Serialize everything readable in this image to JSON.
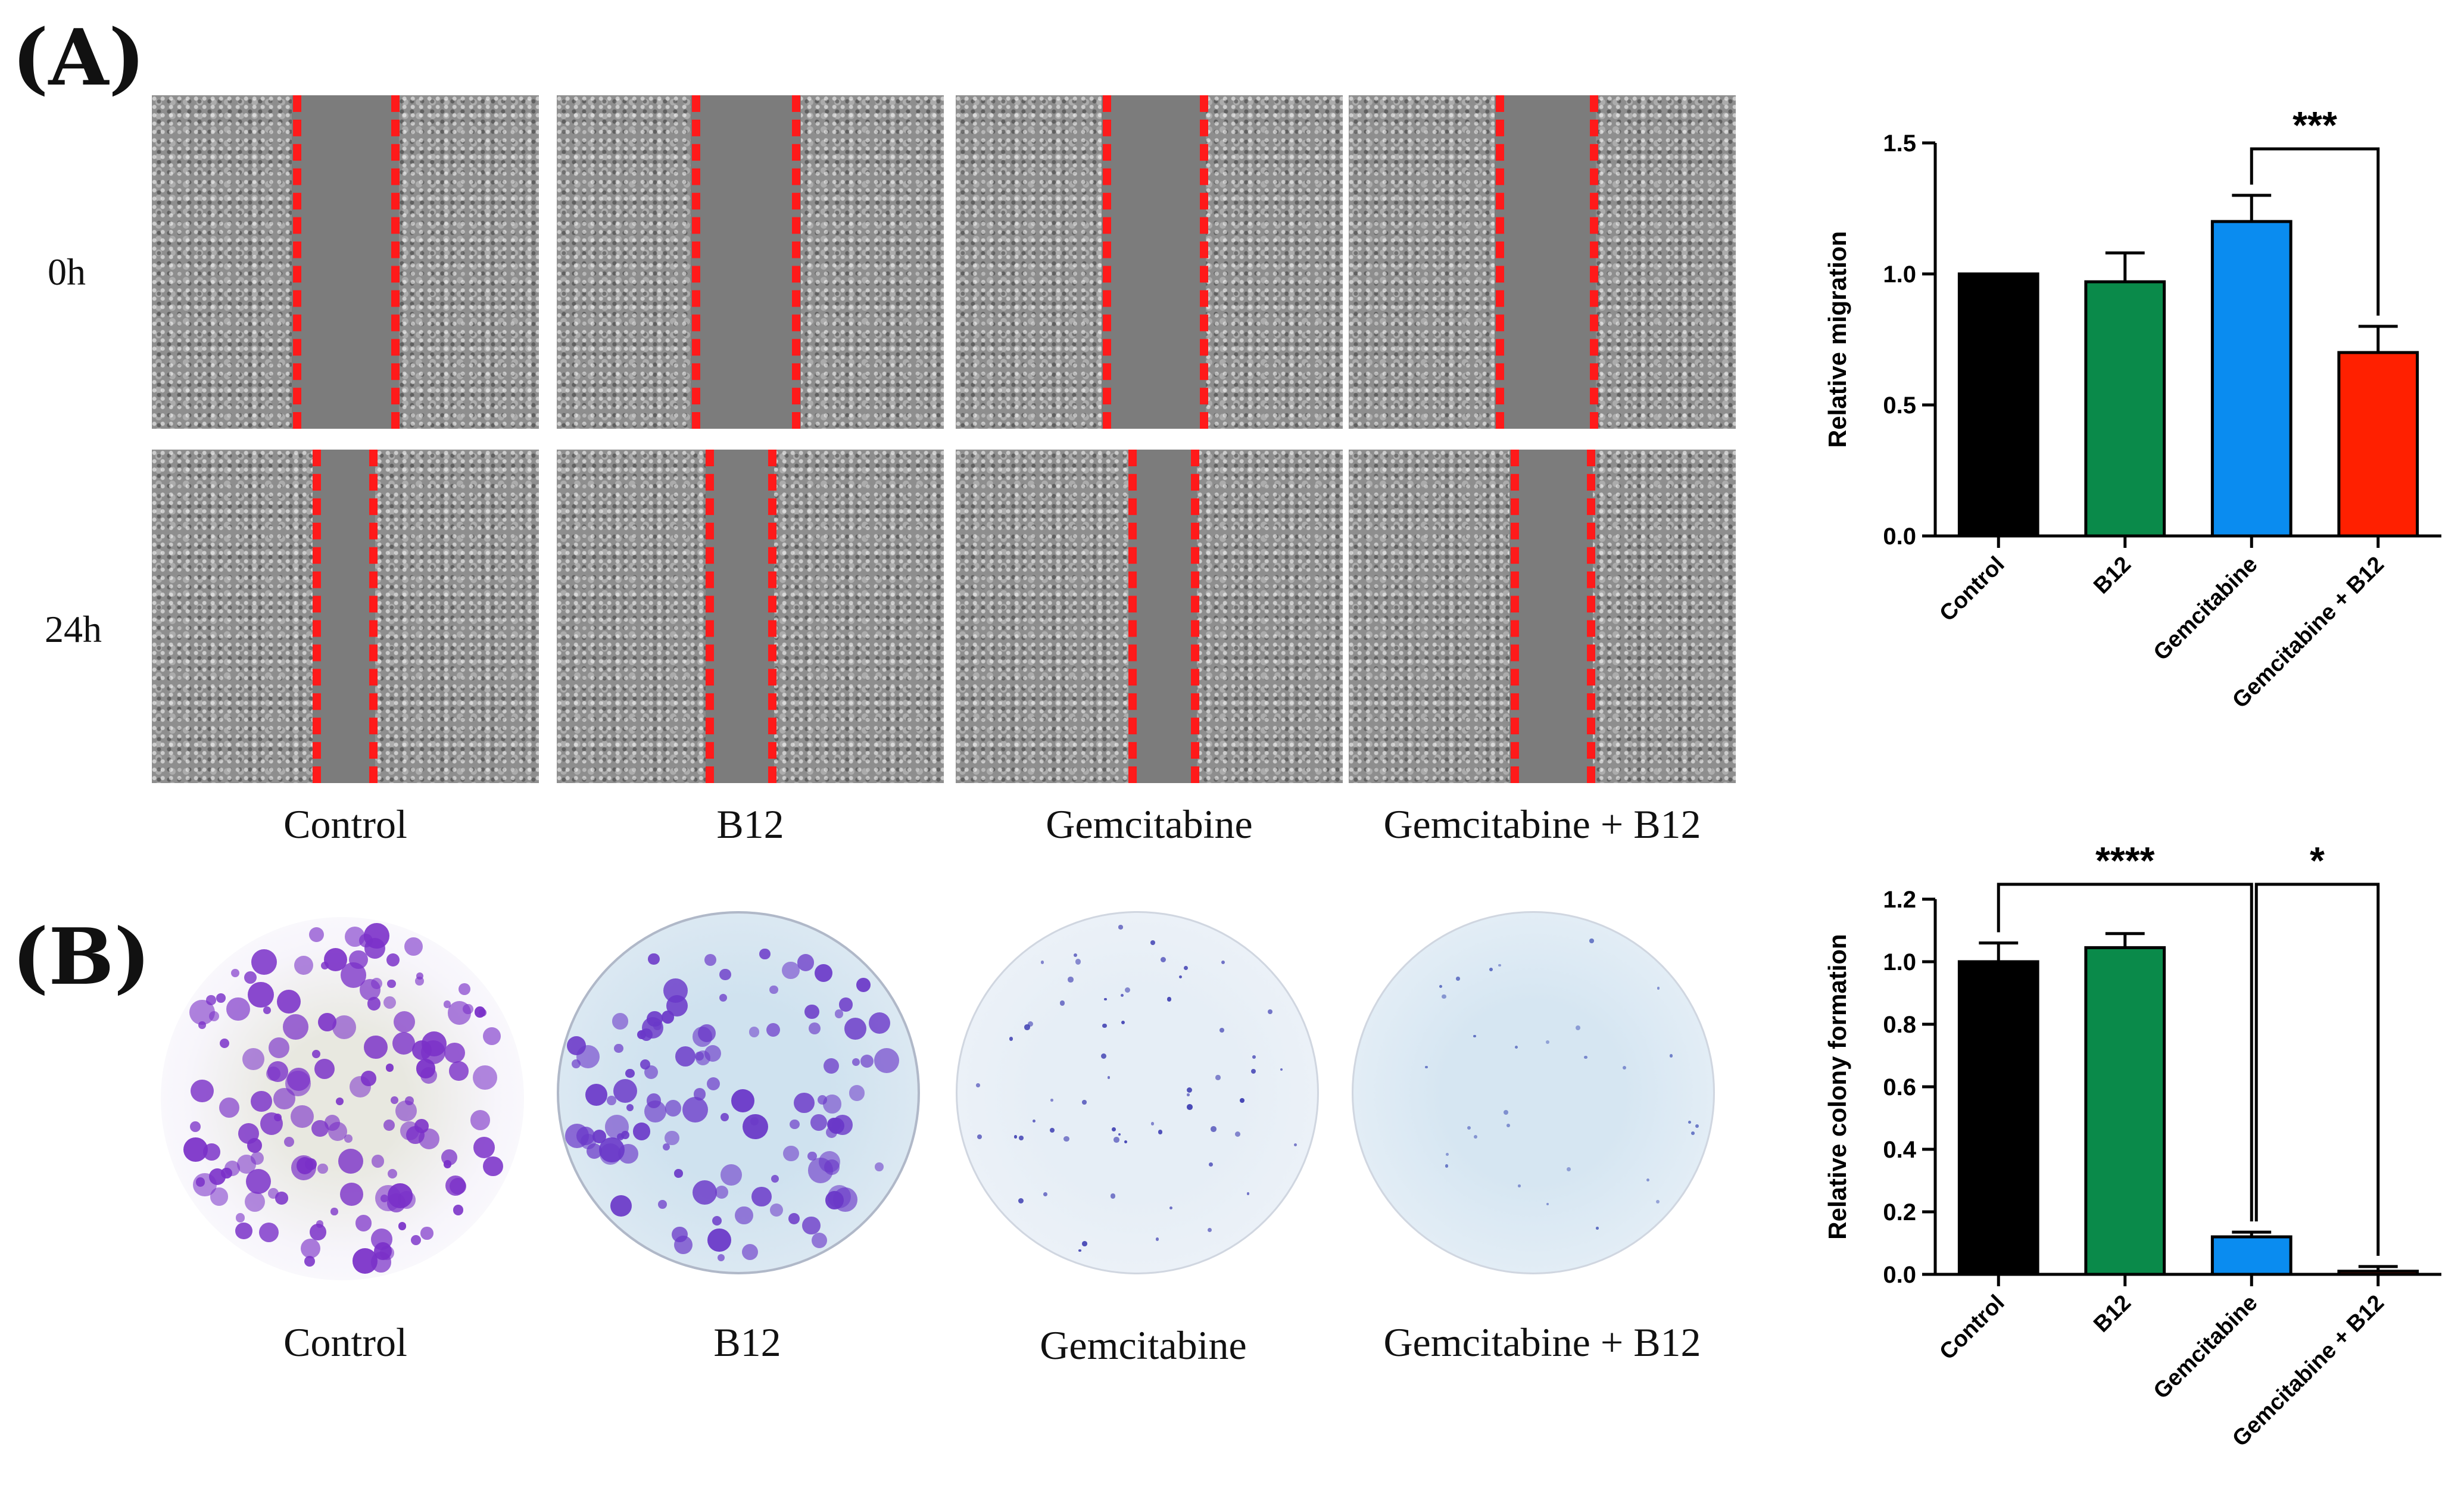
{
  "panels": {
    "a": "(A)",
    "b": "(B)"
  },
  "row_labels": [
    "0h",
    "24h"
  ],
  "groups": [
    "Control",
    "B12",
    "Gemcitabine",
    "Gemcitabine + B12"
  ],
  "colors": {
    "Control": "#000000",
    "B12": "#0a8a4a",
    "Gemcitabine": "#0a8cf0",
    "Gemcitabine + B12": "#ff2000",
    "scratch_line": "#ff1a1a",
    "crystal_violet": "#7a30c8"
  },
  "chart_data": [
    {
      "type": "bar",
      "title": "",
      "xlabel": "",
      "ylabel": "Relative migration",
      "categories": [
        "Control",
        "B12",
        "Gemcitabine",
        "Gemcitabine + B12"
      ],
      "values": [
        1.0,
        0.97,
        1.2,
        0.7
      ],
      "errors": [
        0.0,
        0.11,
        0.1,
        0.1
      ],
      "ylim": [
        0,
        1.5
      ],
      "yticks": [
        "0.0",
        "0.5",
        "1.0",
        "1.5"
      ],
      "significance": [
        {
          "from": "Gemcitabine",
          "to": "Gemcitabine + B12",
          "label": "***"
        }
      ]
    },
    {
      "type": "bar",
      "title": "",
      "xlabel": "",
      "ylabel": "Relative colony formation",
      "categories": [
        "Control",
        "B12",
        "Gemcitabine",
        "Gemcitabine + B12"
      ],
      "values": [
        1.0,
        1.045,
        0.12,
        0.01
      ],
      "errors": [
        0.06,
        0.045,
        0.015,
        0.015
      ],
      "ylim": [
        0,
        1.2
      ],
      "yticks": [
        "0.0",
        "0.2",
        "0.4",
        "0.6",
        "0.8",
        "1.0",
        "1.2"
      ],
      "significance": [
        {
          "from": "Control",
          "to": "Gemcitabine",
          "label": "****"
        },
        {
          "from": "Gemcitabine",
          "to": "Gemcitabine + B12",
          "label": "*"
        }
      ]
    }
  ]
}
